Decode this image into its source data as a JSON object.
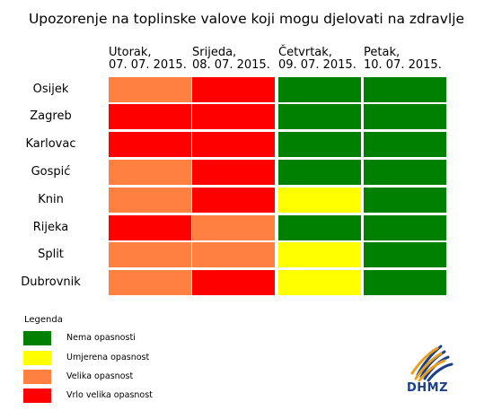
{
  "title": "Upozorenje na toplinske valove koji mogu djelovati na zdravlje",
  "columns": [
    {
      "day": "Utorak,",
      "date": "07. 07. 2015."
    },
    {
      "day": "Srijeda,",
      "date": "08. 07. 2015."
    },
    {
      "day": "Četvrtak,",
      "date": "09. 07. 2015."
    },
    {
      "day": "Petak,",
      "date": "10. 07. 2015."
    }
  ],
  "rows": [
    {
      "city": "Osijek",
      "levels": [
        2,
        3,
        0,
        0
      ]
    },
    {
      "city": "Zagreb",
      "levels": [
        3,
        3,
        0,
        0
      ]
    },
    {
      "city": "Karlovac",
      "levels": [
        3,
        3,
        0,
        0
      ]
    },
    {
      "city": "Gospić",
      "levels": [
        2,
        3,
        0,
        0
      ]
    },
    {
      "city": "Knin",
      "levels": [
        2,
        3,
        1,
        0
      ]
    },
    {
      "city": "Rijeka",
      "levels": [
        3,
        2,
        0,
        0
      ]
    },
    {
      "city": "Split",
      "levels": [
        2,
        2,
        1,
        0
      ]
    },
    {
      "city": "Dubrovnik",
      "levels": [
        2,
        3,
        1,
        0
      ]
    }
  ],
  "legend": {
    "title": "Legenda",
    "items": [
      {
        "label": "Nema opasnosti",
        "color": "#008000"
      },
      {
        "label": "Umjerena opasnost",
        "color": "#ffff00"
      },
      {
        "label": "Velika opasnost",
        "color": "#ff8040"
      },
      {
        "label": "Vrlo velika opasnost",
        "color": "#ff0000"
      }
    ]
  },
  "logo": {
    "text": "DHMZ",
    "icon": "dhmz-logo-icon"
  }
}
